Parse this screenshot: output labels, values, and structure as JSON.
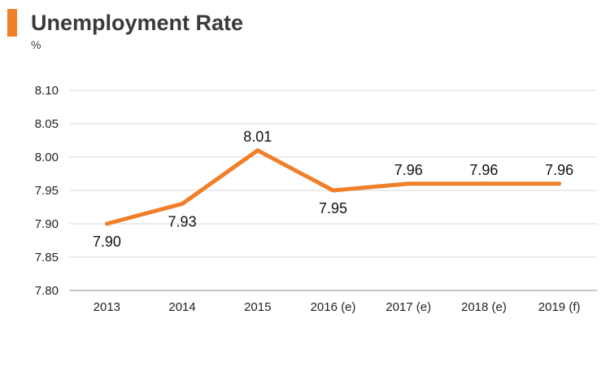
{
  "header": {
    "title": "Unemployment Rate",
    "unit": "%"
  },
  "colors": {
    "line": "#f07f2a",
    "accent": "#f07f2a",
    "grid": "#d9d9d9",
    "text": "#222222"
  },
  "chart_data": {
    "type": "line",
    "title": "Unemployment Rate",
    "subtitle": "%",
    "xlabel": "",
    "ylabel": "",
    "categories": [
      "2013",
      "2014",
      "2015",
      "2016 (e)",
      "2017 (e)",
      "2018 (e)",
      "2019 (f)"
    ],
    "series": [
      {
        "values": [
          7.9,
          7.93,
          8.01,
          7.95,
          7.96,
          7.96,
          7.96
        ],
        "labels": [
          "7.90",
          "7.93",
          "8.01",
          "7.95",
          "7.96",
          "7.96",
          "7.96"
        ],
        "label_positions": [
          "below",
          "below",
          "above",
          "below",
          "above",
          "above",
          "above"
        ]
      }
    ],
    "yticks": [
      "7.80",
      "7.85",
      "7.90",
      "7.95",
      "8.00",
      "8.05",
      "8.10"
    ],
    "ylim": [
      7.8,
      8.1
    ],
    "grid": true,
    "legend": "none"
  }
}
